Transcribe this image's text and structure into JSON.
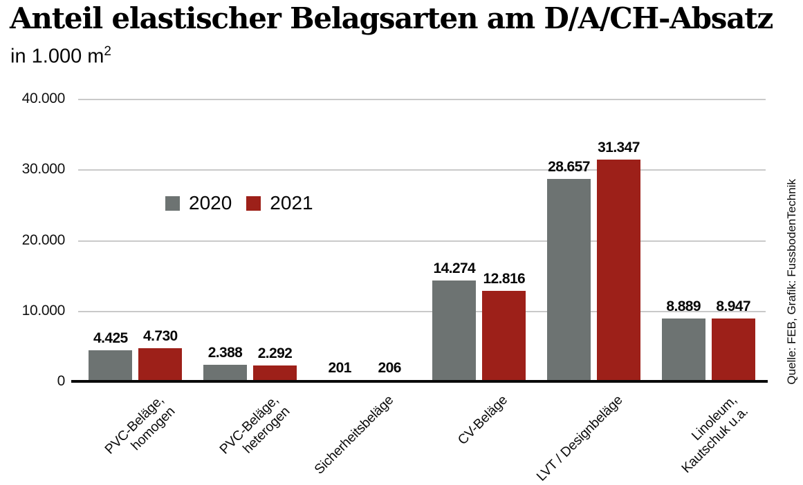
{
  "header": {
    "title": "Anteil elastischer Belagsarten am D/A/CH-Absatz",
    "subtitle_text": "in 1.000 m",
    "subtitle_sup": "2"
  },
  "source_note": "Quelle: FEB, Grafik: FussbodenTechnik",
  "chart_data": {
    "type": "bar",
    "title": "Anteil elastischer Belagsarten am D/A/CH-Absatz",
    "subtitle": "in 1.000 m²",
    "unit": "1.000 m²",
    "categories": [
      [
        "PVC-Beläge,",
        "homogen"
      ],
      [
        "PVC-Beläge,",
        "heterogen"
      ],
      [
        "Sicherheitsbeläge"
      ],
      [
        "CV-Beläge"
      ],
      [
        "LVT / Designbeläge"
      ],
      [
        "Linoleum,",
        "Kautschuk u.a."
      ]
    ],
    "series": [
      {
        "name": "2020",
        "color": "#6d7372",
        "values": [
          4425,
          2388,
          201,
          14274,
          28657,
          8889
        ],
        "labels": [
          "4.425",
          "2.388",
          "201",
          "14.274",
          "28.657",
          "8.889"
        ]
      },
      {
        "name": "2021",
        "color": "#9d2019",
        "values": [
          4730,
          2292,
          206,
          12816,
          31347,
          8947
        ],
        "labels": [
          "4.730",
          "2.292",
          "206",
          "12.816",
          "31.347",
          "8.947"
        ]
      }
    ],
    "y_axis": {
      "min": 0,
      "max": 40000,
      "tick_step": 10000,
      "tick_labels": [
        "0",
        "10.000",
        "20.000",
        "30.000",
        "40.000"
      ]
    },
    "grid": true,
    "legend_position": "inside-upper-left",
    "colors": {
      "grid": "#c9c9c9",
      "axis": "#0a0a0a"
    }
  }
}
